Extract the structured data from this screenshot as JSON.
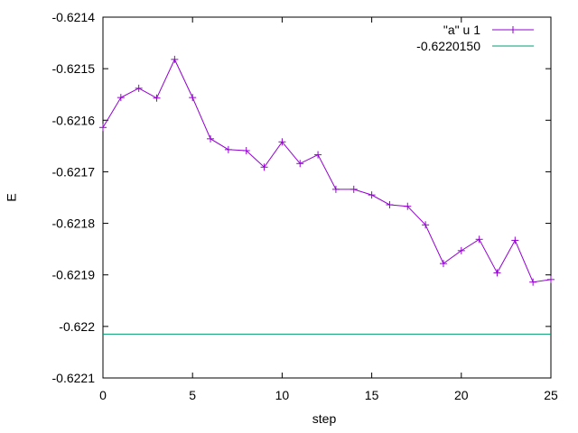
{
  "chart_data": {
    "type": "line",
    "title": "",
    "xlabel": "step",
    "ylabel": "E",
    "xlim": [
      0,
      25
    ],
    "ylim": [
      -0.6221,
      -0.6214
    ],
    "x_ticks": [
      0,
      5,
      10,
      15,
      20,
      25
    ],
    "x_tick_labels": [
      "0",
      "5",
      "10",
      "15",
      "20",
      "25"
    ],
    "y_ticks": [
      -0.6221,
      -0.622,
      -0.6219,
      -0.6218,
      -0.6217,
      -0.6216,
      -0.6215,
      -0.6214
    ],
    "y_tick_labels": [
      "-0.6221",
      "-0.622",
      "-0.6219",
      "-0.6218",
      "-0.6217",
      "-0.6216",
      "-0.6215",
      "-0.6214"
    ],
    "grid": false,
    "legend_position": "top-right",
    "series": [
      {
        "name": "\"a\" u 1",
        "color": "#9400d3",
        "marker": "plus",
        "x": [
          0,
          1,
          2,
          3,
          4,
          5,
          6,
          7,
          8,
          9,
          10,
          11,
          12,
          13,
          14,
          15,
          16,
          17,
          18,
          19,
          20,
          21,
          22,
          23,
          24,
          25
        ],
        "y": [
          -0.621614,
          -0.621556,
          -0.621538,
          -0.621557,
          -0.621482,
          -0.621556,
          -0.621636,
          -0.621657,
          -0.621659,
          -0.621691,
          -0.621642,
          -0.621684,
          -0.621667,
          -0.621734,
          -0.621734,
          -0.621745,
          -0.621764,
          -0.621767,
          -0.621803,
          -0.621878,
          -0.621853,
          -0.621831,
          -0.621896,
          -0.621833,
          -0.621914,
          -0.621909
        ]
      },
      {
        "name": "-0.6220150",
        "color": "#009e73",
        "marker": "none",
        "constant": -0.622015
      }
    ]
  }
}
